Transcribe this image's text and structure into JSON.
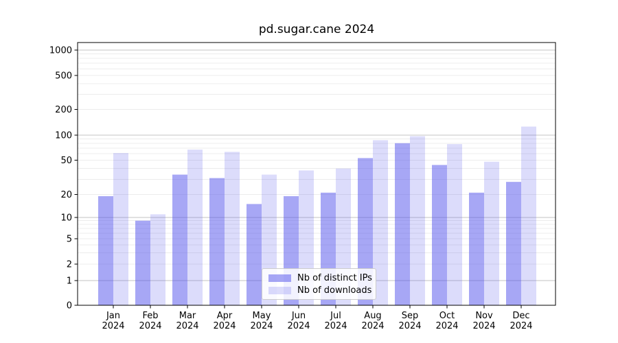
{
  "chart_data": {
    "type": "bar",
    "title": "pd.sugar.cane 2024",
    "categories": [
      "Jan",
      "Feb",
      "Mar",
      "Apr",
      "May",
      "Jun",
      "Jul",
      "Aug",
      "Sep",
      "Oct",
      "Nov",
      "Dec"
    ],
    "x_year_label": "2024",
    "series": [
      {
        "name": "Nb of distinct IPs",
        "base_color": "#5050eb",
        "alpha": 0.5,
        "appearance_hex": "#a7a7f5",
        "values": [
          19,
          9,
          34,
          31,
          15,
          19,
          21,
          53,
          80,
          44,
          21,
          28
        ]
      },
      {
        "name": "Nb of downloads",
        "base_color": "#5050eb",
        "alpha": 0.2,
        "appearance_hex": "#dcdcfb",
        "values": [
          61,
          11,
          67,
          63,
          34,
          38,
          40,
          87,
          97,
          78,
          48,
          126
        ]
      }
    ],
    "xlabel": "",
    "ylabel": "",
    "y_scale": "symlog",
    "y_ticks": [
      0,
      1,
      2,
      5,
      10,
      20,
      50,
      100,
      200,
      500,
      1000
    ],
    "y_tick_labels": [
      "0",
      "1",
      "2",
      "5",
      "10",
      "20",
      "50",
      "100",
      "200",
      "500",
      "1000"
    ],
    "ylim": [
      0,
      1250
    ],
    "grid": true,
    "grid_major_color": "#c3c3c3",
    "grid_minor_color": "#ececec",
    "legend_position": "lower center"
  }
}
